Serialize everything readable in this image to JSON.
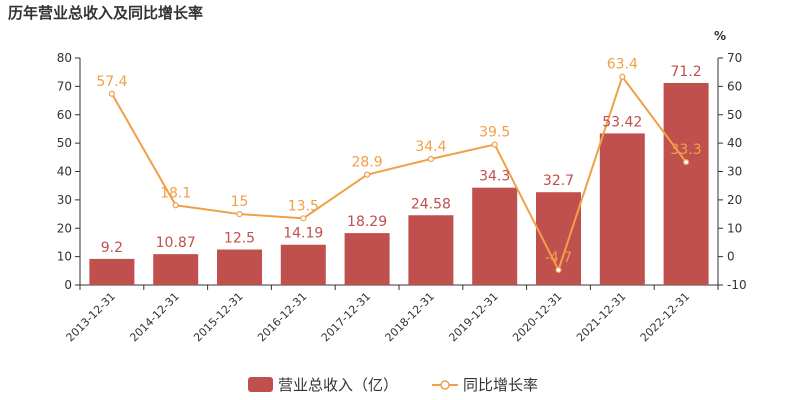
{
  "title": "历年营业总收入及同比增长率",
  "colors": {
    "bar": "#c0504d",
    "line": "#f0a049",
    "axis": "#333333"
  },
  "chart_data": {
    "type": "bar",
    "categories": [
      "2013-12-31",
      "2014-12-31",
      "2015-12-31",
      "2016-12-31",
      "2017-12-31",
      "2018-12-31",
      "2019-12-31",
      "2020-12-31",
      "2021-12-31",
      "2022-12-31"
    ],
    "series": [
      {
        "name": "营业总收入（亿）",
        "type": "bar",
        "axis": "left",
        "values": [
          9.2,
          10.87,
          12.5,
          14.19,
          18.29,
          24.58,
          34.3,
          32.7,
          53.42,
          71.2
        ],
        "labels": [
          "9.2",
          "10.87",
          "12.5",
          "14.19",
          "18.29",
          "24.58",
          "34.3",
          "32.7",
          "53.42",
          "71.2"
        ]
      },
      {
        "name": "同比增长率",
        "type": "line",
        "axis": "right",
        "values": [
          57.4,
          18.1,
          15,
          13.5,
          28.9,
          34.4,
          39.5,
          -4.7,
          63.4,
          33.3
        ],
        "labels": [
          "57.4",
          "18.1",
          "15",
          "13.5",
          "28.9",
          "34.4",
          "39.5",
          "-4.7",
          "63.4",
          "33.3"
        ]
      }
    ],
    "ylim_left": [
      0,
      80
    ],
    "yticks_left": [
      0,
      10,
      20,
      30,
      40,
      50,
      60,
      70,
      80
    ],
    "ylim_right": [
      -10,
      70
    ],
    "yticks_right": [
      -10,
      0,
      10,
      20,
      30,
      40,
      50,
      60,
      70
    ],
    "right_unit": "%",
    "grid": false,
    "legend_position": "bottom"
  }
}
